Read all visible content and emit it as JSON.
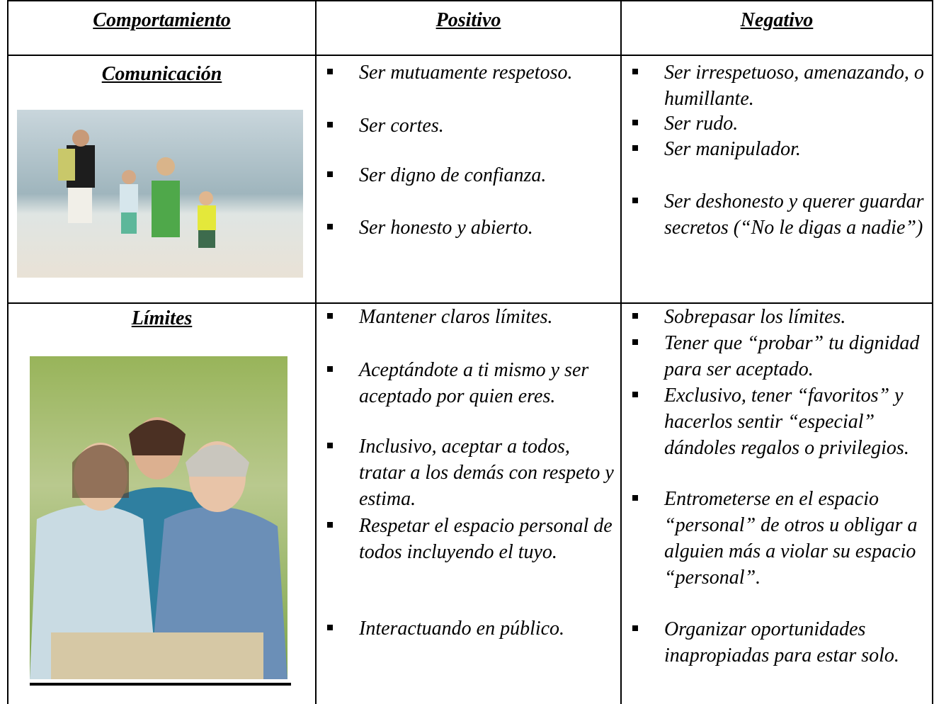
{
  "table": {
    "header": [
      "Comportamiento",
      "Positivo",
      "Negativo"
    ],
    "rows": [
      {
        "behavior": "Comunicación",
        "positive": [
          "Ser mutuamente respetoso.",
          "Ser cortes.",
          "Ser digno de confianza.",
          "Ser honesto y abierto."
        ],
        "negative": [
          "Ser irrespetuoso, amenazando, o humillante.",
          "Ser rudo.",
          "Ser manipulador.",
          "Ser deshonesto y querer guardar secretos (“No le digas a nadie”)"
        ]
      },
      {
        "behavior": "Límites",
        "positive": [
          "Mantener claros límites.",
          "Aceptándote a ti mismo y ser aceptado por quien eres.",
          "Inclusivo, aceptar a todos, tratar a los demás con respeto y estima.",
          "Respetar el espacio personal de todos incluyendo el tuyo.",
          "Interactuando en público."
        ],
        "negative": [
          "Sobrepasar los límites.",
          "Tener que “probar” tu dignidad para ser aceptado.",
          "Exclusivo, tener “favoritos” y hacerlos sentir “especial” dándoles regalos o privilegios.",
          "Entrometerse en el espacio “personal” de otros u obligar a alguien más a violar su espacio “personal”.",
          "Organizar oportunidades inapropiadas para estar solo."
        ]
      }
    ]
  }
}
